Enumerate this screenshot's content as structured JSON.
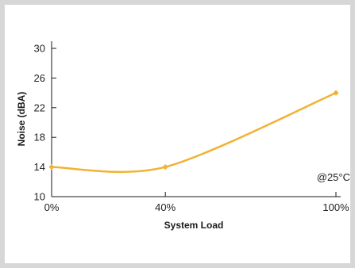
{
  "chart_data": {
    "type": "line",
    "title": "",
    "xlabel": "System Load",
    "ylabel": "Noise (dBA)",
    "annotation": "@25°C",
    "x_categories": [
      "0%",
      "40%",
      "100%"
    ],
    "x_values": [
      0,
      40,
      100
    ],
    "xlim": [
      0,
      100
    ],
    "ylim": [
      10,
      30
    ],
    "yticks": [
      10,
      14,
      18,
      22,
      26,
      30
    ],
    "ytick_labels": [
      "10",
      "14",
      "18",
      "22",
      "26",
      "30"
    ],
    "series": [
      {
        "values": [
          14,
          14,
          24
        ],
        "color": "#f2b233"
      }
    ],
    "grid": false,
    "legend": "none"
  }
}
